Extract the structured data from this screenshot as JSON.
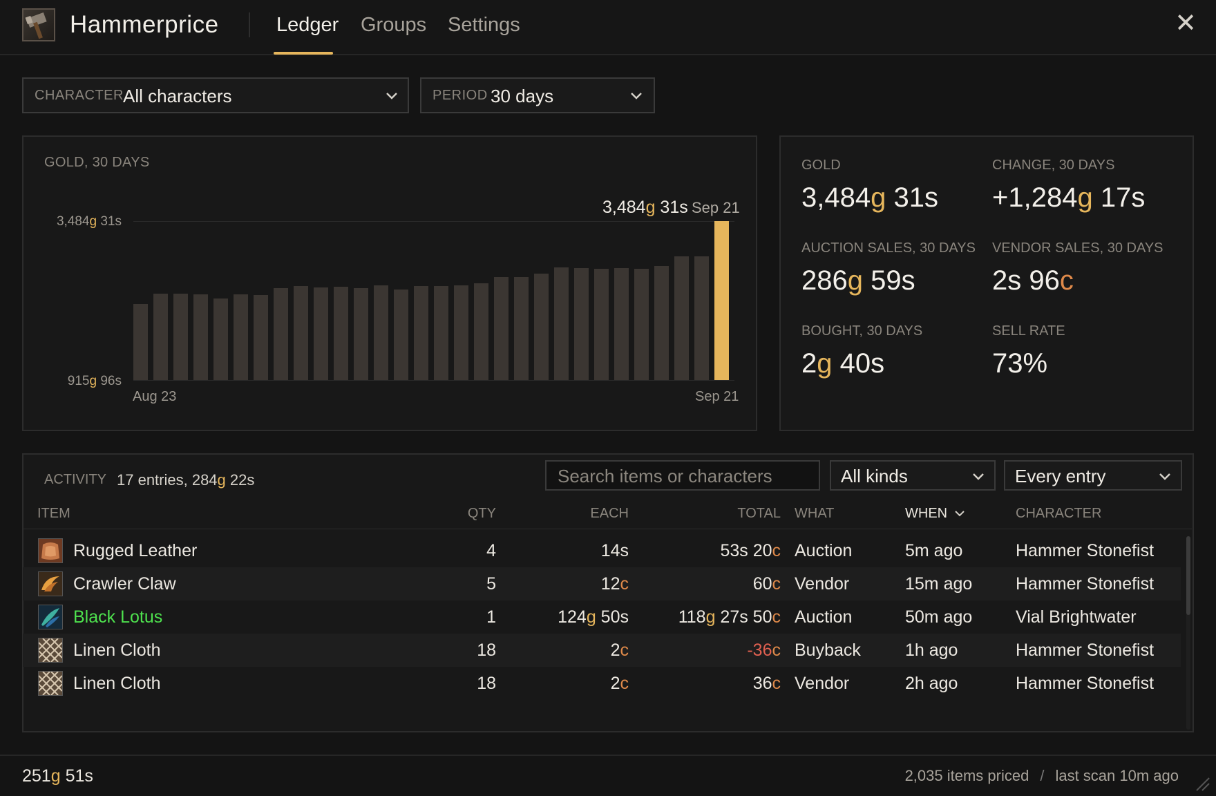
{
  "app": {
    "title": "Hammerprice",
    "tabs": [
      "Ledger",
      "Groups",
      "Settings"
    ],
    "active_tab": "Ledger",
    "close_label": "✕"
  },
  "filters": {
    "character": {
      "label": "CHARACTER",
      "value": "All characters"
    },
    "period": {
      "label": "PERIOD",
      "value": "30 days"
    }
  },
  "chart": {
    "label": "GOLD, 30 DAYS",
    "ytick_top": {
      "g": "3,484",
      "s": "31"
    },
    "ytick_bottom": {
      "g": "915",
      "s": "96"
    },
    "callout": {
      "g": "3,484",
      "s": "31",
      "date": "Sep 21"
    },
    "x_start": "Aug 23",
    "x_end": "Sep 21"
  },
  "chart_data": {
    "type": "bar",
    "ylim": [
      915.96,
      3484.31
    ],
    "categories": [
      "Aug 23",
      "",
      "",
      "",
      "",
      "",
      "",
      "",
      "",
      "",
      "",
      "",
      "",
      "",
      "",
      "",
      "",
      "",
      "",
      "",
      "",
      "",
      "",
      "",
      "",
      "",
      "",
      "",
      "",
      "Sep 21"
    ],
    "values": [
      1780,
      2000,
      2000,
      1980,
      1900,
      1980,
      1970,
      2100,
      2150,
      2120,
      2140,
      2100,
      2160,
      2080,
      2150,
      2150,
      2170,
      2200,
      2340,
      2340,
      2400,
      2530,
      2520,
      2500,
      2520,
      2500,
      2560,
      2760,
      2760,
      3484.31
    ]
  },
  "stats": [
    {
      "label": "GOLD",
      "parts": [
        {
          "t": "3,484",
          "k": ""
        },
        {
          "t": "g",
          "k": "g"
        },
        {
          "t": " 31s",
          "k": ""
        }
      ]
    },
    {
      "label": "CHANGE, 30 DAYS",
      "parts": [
        {
          "t": "+1,284",
          "k": "pos"
        },
        {
          "t": "g",
          "k": "g"
        },
        {
          "t": " 17s",
          "k": "pos"
        }
      ]
    },
    {
      "label": "AUCTION SALES, 30 DAYS",
      "parts": [
        {
          "t": "286",
          "k": ""
        },
        {
          "t": "g",
          "k": "g"
        },
        {
          "t": " 59s",
          "k": ""
        }
      ]
    },
    {
      "label": "VENDOR SALES, 30 DAYS",
      "parts": [
        {
          "t": "2s 96",
          "k": ""
        },
        {
          "t": "c",
          "k": "c"
        }
      ]
    },
    {
      "label": "BOUGHT, 30 DAYS",
      "parts": [
        {
          "t": "2",
          "k": ""
        },
        {
          "t": "g",
          "k": "g"
        },
        {
          "t": " 40s",
          "k": ""
        }
      ]
    },
    {
      "label": "SELL RATE",
      "parts": [
        {
          "t": "73%",
          "k": ""
        }
      ]
    }
  ],
  "activity": {
    "label": "ACTIVITY",
    "summary_parts": [
      {
        "t": "17 entries, 284",
        "k": ""
      },
      {
        "t": "g",
        "k": "g"
      },
      {
        "t": " 22s",
        "k": ""
      }
    ],
    "search_placeholder": "Search items or characters",
    "kind_filter": "All kinds",
    "entry_filter": "Every entry",
    "columns": {
      "item": "ITEM",
      "qty": "QTY",
      "each": "EACH",
      "total": "TOTAL",
      "what": "WHAT",
      "when": "WHEN",
      "character": "CHARACTER"
    },
    "rows": [
      {
        "item": "Rugged Leather",
        "icon": "leather-icon",
        "rare": false,
        "qty": "4",
        "each": [
          {
            "t": "14s",
            "k": ""
          }
        ],
        "total": [
          {
            "t": "53s 20",
            "k": ""
          },
          {
            "t": "c",
            "k": "c"
          }
        ],
        "what": "Auction",
        "when": "5m ago",
        "character": "Hammer Stonefist"
      },
      {
        "item": "Crawler Claw",
        "icon": "claw-icon",
        "rare": false,
        "qty": "5",
        "each": [
          {
            "t": "12",
            "k": ""
          },
          {
            "t": "c",
            "k": "c"
          }
        ],
        "total": [
          {
            "t": "60",
            "k": ""
          },
          {
            "t": "c",
            "k": "c"
          }
        ],
        "what": "Vendor",
        "when": "15m ago",
        "character": "Hammer Stonefist"
      },
      {
        "item": "Black Lotus",
        "icon": "lotus-icon",
        "rare": true,
        "qty": "1",
        "each": [
          {
            "t": "124",
            "k": ""
          },
          {
            "t": "g",
            "k": "g"
          },
          {
            "t": " 50s",
            "k": ""
          }
        ],
        "total": [
          {
            "t": "118",
            "k": ""
          },
          {
            "t": "g",
            "k": "g"
          },
          {
            "t": " 27s 50",
            "k": ""
          },
          {
            "t": "c",
            "k": "c"
          }
        ],
        "what": "Auction",
        "when": "50m ago",
        "character": "Vial Brightwater"
      },
      {
        "item": "Linen Cloth",
        "icon": "cloth-icon",
        "rare": false,
        "qty": "18",
        "each": [
          {
            "t": "2",
            "k": ""
          },
          {
            "t": "c",
            "k": "c"
          }
        ],
        "total": [
          {
            "t": "-36",
            "k": "neg"
          },
          {
            "t": "c",
            "k": "c"
          }
        ],
        "what": "Buyback",
        "when": "1h ago",
        "character": "Hammer Stonefist"
      },
      {
        "item": "Linen Cloth",
        "icon": "cloth-icon",
        "rare": false,
        "qty": "18",
        "each": [
          {
            "t": "2",
            "k": ""
          },
          {
            "t": "c",
            "k": "c"
          }
        ],
        "total": [
          {
            "t": "36",
            "k": ""
          },
          {
            "t": "c",
            "k": "c"
          }
        ],
        "what": "Vendor",
        "when": "2h ago",
        "character": "Hammer Stonefist"
      }
    ]
  },
  "footer": {
    "gold_parts": [
      {
        "t": "251",
        "k": ""
      },
      {
        "t": "g",
        "k": "g"
      },
      {
        "t": " 51s",
        "k": ""
      }
    ],
    "items_priced": "2,035 items priced",
    "separator": "/",
    "last_scan": "last scan 10m ago"
  },
  "colors": {
    "accent": "#e6b65c",
    "positive": "#5fcf8a",
    "negative": "#e06050",
    "rare": "#4ee24e",
    "copper": "#e08a4a"
  }
}
